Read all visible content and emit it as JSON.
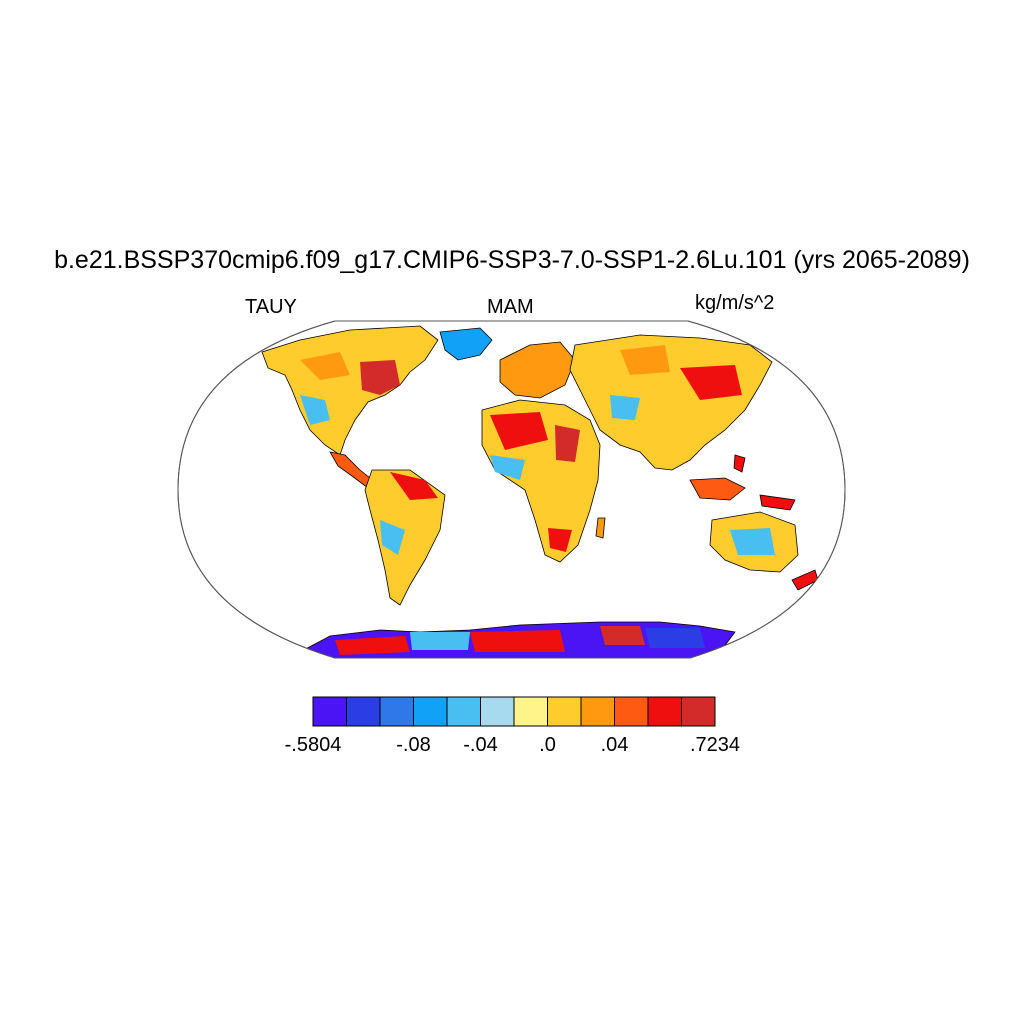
{
  "title": "b.e21.BSSP370cmip6.f09_g17.CMIP6-SSP3-7.0-SSP1-2.6Lu.101 (yrs 2065-2089)",
  "left_label": "TAUY",
  "center_label": "MAM",
  "units": "kg/m/s^2",
  "map": {
    "projection": "robinson",
    "field": "TAUY",
    "region": "global land",
    "ocean_fill": "#ffffff",
    "coastline_color": "#000000"
  },
  "colorbar": {
    "colors": [
      "#4b14f5",
      "#2b3ee6",
      "#2f78ea",
      "#11a2f7",
      "#48bff0",
      "#a7d9ef",
      "#fff48a",
      "#ffcc2e",
      "#ff9a10",
      "#ff5a12",
      "#f00f0f",
      "#d32a2a"
    ],
    "tick_labels": [
      {
        "text": "-.5804",
        "boundary": 0
      },
      {
        "text": "-.08",
        "boundary": 3
      },
      {
        "text": "-.04",
        "boundary": 5
      },
      {
        "text": ".0",
        "boundary": 7
      },
      {
        "text": ".04",
        "boundary": 9
      },
      {
        "text": ".7234",
        "boundary": 12
      }
    ]
  }
}
